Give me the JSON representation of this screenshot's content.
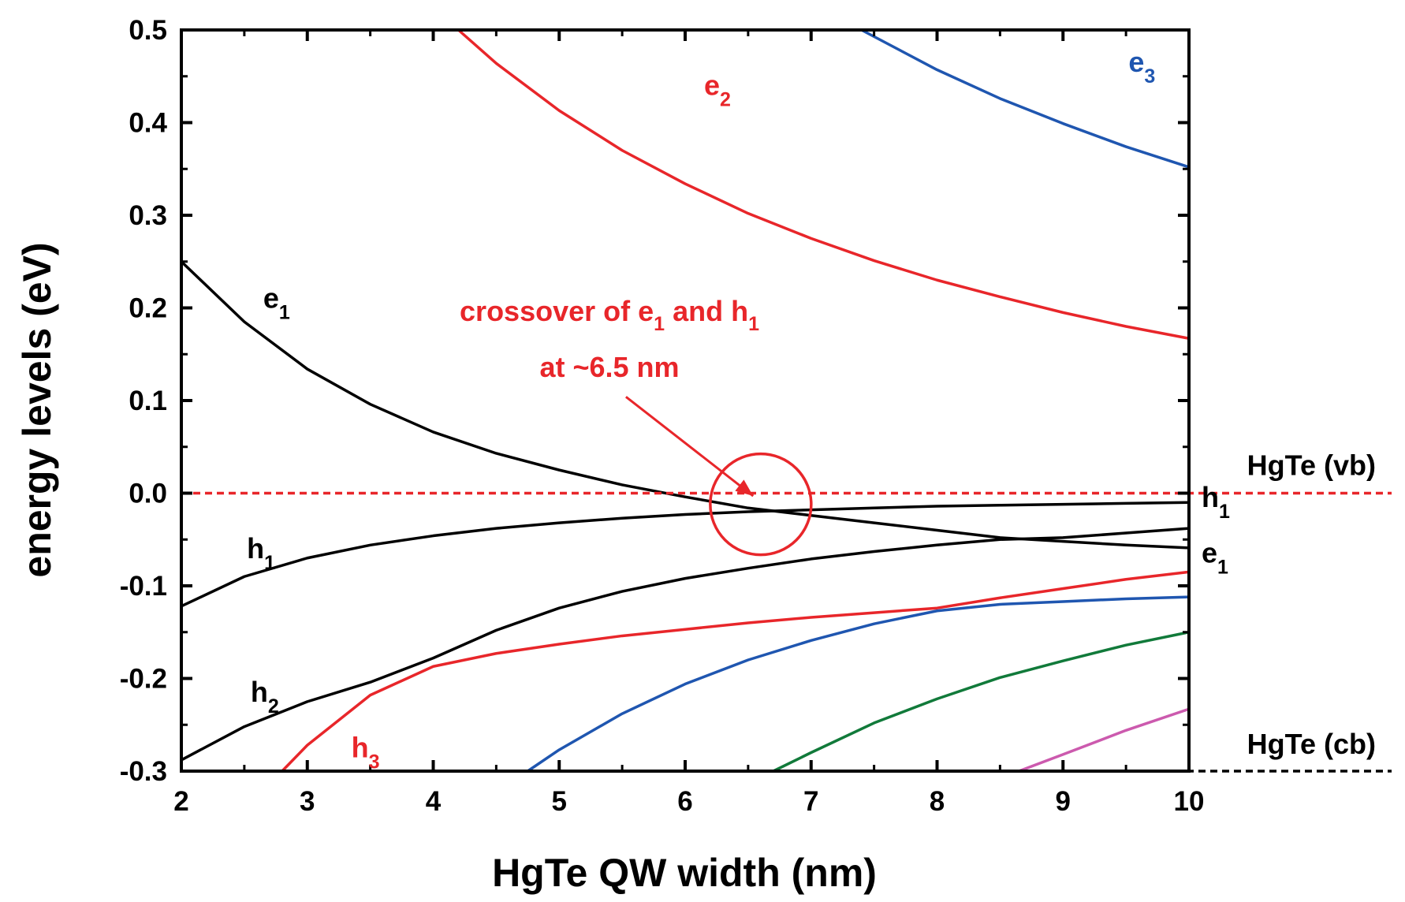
{
  "chart_data": {
    "type": "line",
    "title": "",
    "xlabel": "HgTe QW width (nm)",
    "ylabel": "energy levels (eV)",
    "xlim": [
      2,
      10
    ],
    "ylim": [
      -0.3,
      0.5
    ],
    "xticks": [
      "2",
      "3",
      "4",
      "5",
      "6",
      "7",
      "8",
      "9",
      "10"
    ],
    "yticks": [
      "-0.3",
      "-0.2",
      "-0.1",
      "0.0",
      "0.1",
      "0.2",
      "0.3",
      "0.4",
      "0.5"
    ],
    "grid": false,
    "series": [
      {
        "name": "e1",
        "color": "#000000",
        "points": [
          [
            2,
            0.25
          ],
          [
            2.5,
            0.185
          ],
          [
            3,
            0.134
          ],
          [
            3.5,
            0.096
          ],
          [
            4,
            0.066
          ],
          [
            4.5,
            0.043
          ],
          [
            5,
            0.025
          ],
          [
            5.5,
            0.009
          ],
          [
            6,
            -0.004
          ],
          [
            6.5,
            -0.016
          ],
          [
            7,
            -0.024
          ],
          [
            7.5,
            -0.032
          ],
          [
            8,
            -0.04
          ],
          [
            8.5,
            -0.048
          ],
          [
            9,
            -0.052
          ],
          [
            9.5,
            -0.056
          ],
          [
            10,
            -0.059
          ]
        ]
      },
      {
        "name": "h1",
        "color": "#000000",
        "points": [
          [
            2,
            -0.122
          ],
          [
            2.5,
            -0.09
          ],
          [
            3,
            -0.07
          ],
          [
            3.5,
            -0.056
          ],
          [
            4,
            -0.046
          ],
          [
            4.5,
            -0.038
          ],
          [
            5,
            -0.032
          ],
          [
            5.5,
            -0.027
          ],
          [
            6,
            -0.023
          ],
          [
            6.5,
            -0.02
          ],
          [
            7,
            -0.018
          ],
          [
            7.5,
            -0.016
          ],
          [
            8,
            -0.014
          ],
          [
            8.5,
            -0.013
          ],
          [
            9,
            -0.012
          ],
          [
            9.5,
            -0.011
          ],
          [
            10,
            -0.01
          ]
        ]
      },
      {
        "name": "h2",
        "color": "#000000",
        "points": [
          [
            2,
            -0.288
          ],
          [
            2.5,
            -0.252
          ],
          [
            3,
            -0.225
          ],
          [
            3.5,
            -0.204
          ],
          [
            4,
            -0.178
          ],
          [
            4.5,
            -0.148
          ],
          [
            5,
            -0.124
          ],
          [
            5.5,
            -0.106
          ],
          [
            6,
            -0.092
          ],
          [
            6.5,
            -0.081
          ],
          [
            7,
            -0.071
          ],
          [
            7.5,
            -0.063
          ],
          [
            8,
            -0.056
          ],
          [
            8.5,
            -0.05
          ],
          [
            9,
            -0.048
          ],
          [
            9.5,
            -0.043
          ],
          [
            10,
            -0.038
          ]
        ]
      },
      {
        "name": "h3",
        "color": "#e8262a",
        "points": [
          [
            2.8,
            -0.3
          ],
          [
            3,
            -0.272
          ],
          [
            3.5,
            -0.218
          ],
          [
            4,
            -0.187
          ],
          [
            4.5,
            -0.173
          ],
          [
            5,
            -0.163
          ],
          [
            5.5,
            -0.154
          ],
          [
            6,
            -0.147
          ],
          [
            6.5,
            -0.14
          ],
          [
            7,
            -0.134
          ],
          [
            7.5,
            -0.129
          ],
          [
            8,
            -0.124
          ],
          [
            8.5,
            -0.113
          ],
          [
            9,
            -0.103
          ],
          [
            9.5,
            -0.093
          ],
          [
            10,
            -0.085
          ]
        ]
      },
      {
        "name": "e2",
        "color": "#e8262a",
        "points": [
          [
            4.2,
            0.5
          ],
          [
            4.5,
            0.464
          ],
          [
            5,
            0.413
          ],
          [
            5.5,
            0.37
          ],
          [
            6,
            0.334
          ],
          [
            6.5,
            0.302
          ],
          [
            7,
            0.275
          ],
          [
            7.5,
            0.251
          ],
          [
            8,
            0.23
          ],
          [
            8.5,
            0.212
          ],
          [
            9,
            0.195
          ],
          [
            9.5,
            0.18
          ],
          [
            10,
            0.167
          ]
        ]
      },
      {
        "name": "e3",
        "color": "#1f56b0",
        "points": [
          [
            7.4,
            0.5
          ],
          [
            8,
            0.457
          ],
          [
            8.5,
            0.426
          ],
          [
            9,
            0.399
          ],
          [
            9.5,
            0.374
          ],
          [
            10,
            0.352
          ]
        ]
      },
      {
        "name": "blue-lower",
        "color": "#1f56b0",
        "points": [
          [
            4.75,
            -0.3
          ],
          [
            5,
            -0.277
          ],
          [
            5.5,
            -0.238
          ],
          [
            6,
            -0.206
          ],
          [
            6.5,
            -0.18
          ],
          [
            7,
            -0.159
          ],
          [
            7.5,
            -0.141
          ],
          [
            8,
            -0.127
          ],
          [
            8.5,
            -0.12
          ],
          [
            9,
            -0.117
          ],
          [
            9.5,
            -0.114
          ],
          [
            10,
            -0.112
          ]
        ]
      },
      {
        "name": "green",
        "color": "#117a3a",
        "points": [
          [
            6.7,
            -0.3
          ],
          [
            7,
            -0.28
          ],
          [
            7.5,
            -0.248
          ],
          [
            8,
            -0.222
          ],
          [
            8.5,
            -0.199
          ],
          [
            9,
            -0.181
          ],
          [
            9.5,
            -0.164
          ],
          [
            10,
            -0.15
          ]
        ]
      },
      {
        "name": "magenta",
        "color": "#cc5aae",
        "points": [
          [
            8.65,
            -0.3
          ],
          [
            9,
            -0.282
          ],
          [
            9.5,
            -0.256
          ],
          [
            10,
            -0.233
          ]
        ]
      }
    ],
    "reference_lines": [
      {
        "name": "HgTe (vb)",
        "y": 0.0,
        "color": "#e8262a",
        "style": "dashed"
      },
      {
        "name": "HgTe (cb)",
        "y": -0.3,
        "color": "#000000",
        "style": "dashed"
      }
    ],
    "curve_labels": [
      {
        "base": "e",
        "sub": "1",
        "color": "#000000",
        "x": 2.65,
        "y": 0.2
      },
      {
        "base": "h",
        "sub": "1",
        "color": "#000000",
        "x": 2.52,
        "y": -0.07
      },
      {
        "base": "h",
        "sub": "2",
        "color": "#000000",
        "x": 2.55,
        "y": -0.225
      },
      {
        "base": "h",
        "sub": "3",
        "color": "#e8262a",
        "x": 3.35,
        "y": -0.285
      },
      {
        "base": "e",
        "sub": "2",
        "color": "#e8262a",
        "x": 6.15,
        "y": 0.43
      },
      {
        "base": "e",
        "sub": "3",
        "color": "#1f56b0",
        "x": 9.52,
        "y": 0.455
      },
      {
        "base": "h",
        "sub": "1",
        "color": "#000000",
        "x": 10.1,
        "y": -0.015
      },
      {
        "base": "e",
        "sub": "1",
        "color": "#000000",
        "x": 10.1,
        "y": -0.075
      }
    ],
    "annotation": {
      "line1_a": "crossover of e",
      "line1_sub1": "1",
      "line1_b": " and h",
      "line1_sub2": "1",
      "line2": "at ~6.5 nm",
      "color": "#e8262a",
      "circle_center": [
        6.6,
        -0.012
      ],
      "arrow_from": [
        5.53,
        0.104
      ],
      "arrow_to": [
        6.54,
        -0.003
      ]
    }
  }
}
